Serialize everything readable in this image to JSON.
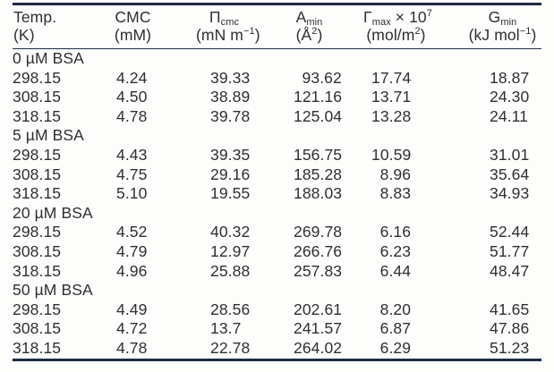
{
  "header": {
    "columns": [
      {
        "name": "Temp.",
        "unit_pre": "(K)"
      },
      {
        "name": "CMC",
        "unit_pre": "(mM)"
      },
      {
        "name": "Π",
        "name_sub": "cmc",
        "unit_pre": "(mN m",
        "unit_sup": "−1",
        "unit_post": ")"
      },
      {
        "name": "A",
        "name_sub": "min",
        "unit_pre": "(Å",
        "unit_sup": "2",
        "unit_post": ")"
      },
      {
        "name": "Γ",
        "name_sub": "max",
        "name_mid": " × 10",
        "name_sup": "7",
        "unit_pre": "(mol/m",
        "unit_sup": "2",
        "unit_post": ")"
      },
      {
        "name": "G",
        "name_sub": "min",
        "unit_pre": "(kJ mol",
        "unit_sup": "−1",
        "unit_post": ")"
      }
    ]
  },
  "sections": [
    {
      "label": "0 µM BSA",
      "rows": [
        [
          "298.15",
          "4.24",
          "39.33",
          "93.62",
          "17.74",
          "18.87"
        ],
        [
          "308.15",
          "4.50",
          "38.89",
          "121.16",
          "13.71",
          "24.30"
        ],
        [
          "318.15",
          "4.78",
          "39.78",
          "125.04",
          "13.28",
          "24.11"
        ]
      ]
    },
    {
      "label": "5 µM BSA",
      "rows": [
        [
          "298.15",
          "4.43",
          "39.35",
          "156.75",
          "10.59",
          "31.01"
        ],
        [
          "308.15",
          "4.75",
          "29.16",
          "185.28",
          "8.96",
          "35.64"
        ],
        [
          "318.15",
          "5.10",
          "19.55",
          "188.03",
          "8.83",
          "34.93"
        ]
      ]
    },
    {
      "label": "20 µM BSA",
      "rows": [
        [
          "298.15",
          "4.52",
          "40.32",
          "269.78",
          "6.16",
          "52.44"
        ],
        [
          "308.15",
          "4.79",
          "12.97",
          "266.76",
          "6.23",
          "51.77"
        ],
        [
          "318.15",
          "4.96",
          "25.88",
          "257.83",
          "6.44",
          "48.47"
        ]
      ]
    },
    {
      "label": "50 µM BSA",
      "rows": [
        [
          "298.15",
          "4.49",
          "28.56",
          "202.61",
          "8.20",
          "41.65"
        ],
        [
          "308.15",
          "4.72",
          "13.7",
          "241.57",
          "6.87",
          "47.86"
        ],
        [
          "318.15",
          "4.78",
          "22.78",
          "264.02",
          "6.29",
          "51.23"
        ]
      ]
    }
  ]
}
